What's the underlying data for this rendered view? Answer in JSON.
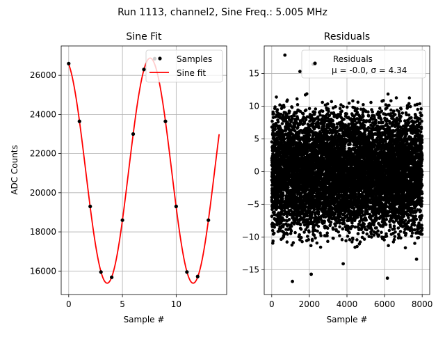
{
  "suptitle": "Run 1113, channel2, Sine Freq.: 5.005 MHz",
  "chart_data": [
    {
      "type": "line",
      "title": "Sine Fit",
      "xlabel": "Sample #",
      "ylabel": "ADC Counts",
      "xlim": [
        -0.7,
        14.7
      ],
      "ylim": [
        14800,
        27500
      ],
      "xticks": [
        0,
        5,
        10
      ],
      "yticks": [
        16000,
        18000,
        20000,
        22000,
        24000,
        26000
      ],
      "grid": true,
      "legend": "upper right",
      "fit": {
        "amplitude": 5750,
        "offset": 21130,
        "period": 8,
        "phase_sample": -0.42,
        "x_start": 0,
        "x_end": 14
      },
      "series": [
        {
          "name": "Samples",
          "style": "points",
          "color": "#000000",
          "x": [
            0,
            1,
            2,
            3,
            4,
            5,
            6,
            7,
            8,
            9,
            10,
            11,
            12,
            13
          ],
          "y": [
            26600,
            23650,
            19300,
            15950,
            15680,
            18600,
            23000,
            26300,
            26850,
            23650,
            19300,
            15950,
            15720,
            18600
          ]
        },
        {
          "name": "Sine fit",
          "style": "line",
          "color": "#ff0000"
        }
      ]
    },
    {
      "type": "scatter",
      "title": "Residuals",
      "xlabel": "Sample #",
      "ylabel": "",
      "xlim": [
        -400,
        8400
      ],
      "ylim": [
        -18.8,
        19.2
      ],
      "xticks": [
        0,
        2000,
        4000,
        6000,
        8000
      ],
      "yticks": [
        -15,
        -10,
        -5,
        0,
        5,
        10,
        15
      ],
      "grid": true,
      "legend": "upper right",
      "series": [
        {
          "name": "Residuals",
          "legend_line2": "μ = -0.0, σ = 4.34",
          "color": "#000000",
          "n_points": 8000,
          "mean": 0.0,
          "sigma": 4.34,
          "outliers": [
            {
              "x": 700,
              "y": 17.8
            },
            {
              "x": 2200,
              "y": 16.4
            },
            {
              "x": 1500,
              "y": 15.3
            },
            {
              "x": 1100,
              "y": -16.8
            },
            {
              "x": 6150,
              "y": -16.3
            },
            {
              "x": 2100,
              "y": -15.7
            },
            {
              "x": 3800,
              "y": -14.1
            },
            {
              "x": 7700,
              "y": -13.4
            }
          ]
        }
      ]
    }
  ]
}
